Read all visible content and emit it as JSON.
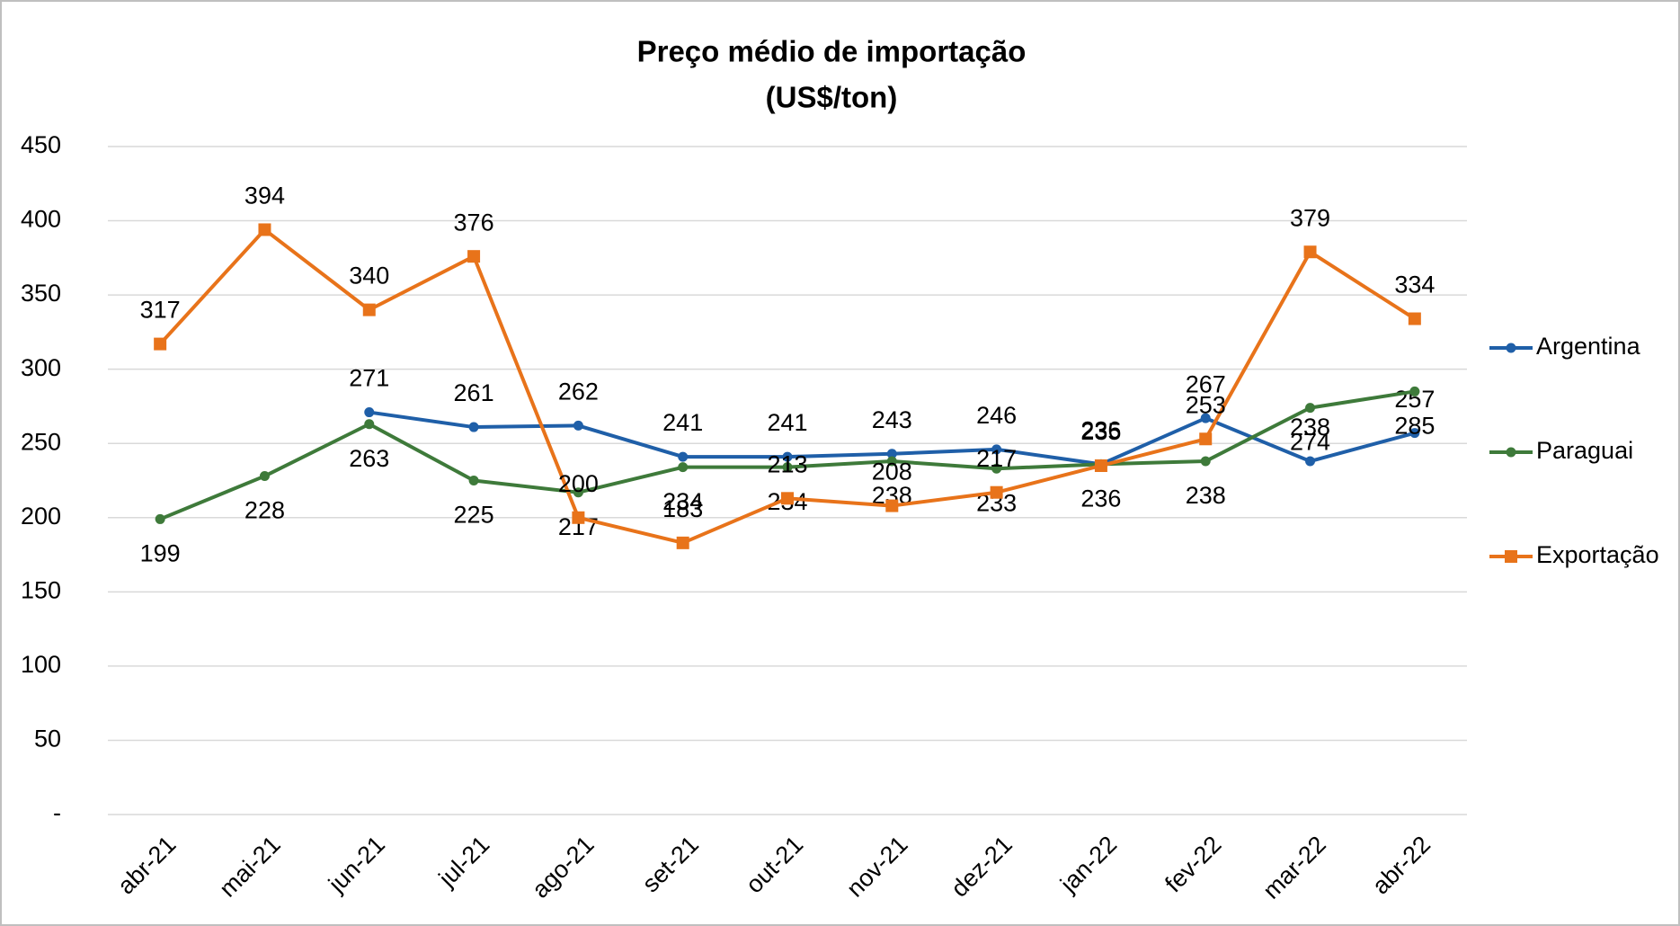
{
  "chart_data": {
    "type": "line",
    "title": "Preço médio de importação",
    "subtitle": "(US$/ton)",
    "categories": [
      "abr-21",
      "mai-21",
      "jun-21",
      "jul-21",
      "ago-21",
      "set-21",
      "out-21",
      "nov-21",
      "dez-21",
      "jan-22",
      "fev-22",
      "mar-22",
      "abr-22"
    ],
    "series": [
      {
        "name": "Argentina",
        "color": "#1f5fa8",
        "label_color": "#2e86a6",
        "marker": "circle",
        "values": [
          null,
          null,
          271,
          261,
          262,
          241,
          241,
          243,
          246,
          236,
          267,
          238,
          257
        ]
      },
      {
        "name": "Paraguai",
        "color": "#3e7a3a",
        "label_color": "#77973a",
        "marker": "circle",
        "values": [
          199,
          228,
          263,
          225,
          217,
          234,
          234,
          238,
          233,
          236,
          238,
          274,
          285
        ]
      },
      {
        "name": "Exportação",
        "color": "#e8731a",
        "label_color": "#e8731a",
        "marker": "square",
        "values": [
          317,
          394,
          340,
          376,
          200,
          183,
          213,
          208,
          217,
          235,
          253,
          379,
          334
        ]
      }
    ],
    "ylim": [
      0,
      450
    ],
    "yticks": [
      {
        "value": 0,
        "label": "-"
      },
      50,
      100,
      150,
      200,
      250,
      300,
      350,
      400,
      450
    ],
    "grid": true,
    "legend": "right"
  }
}
